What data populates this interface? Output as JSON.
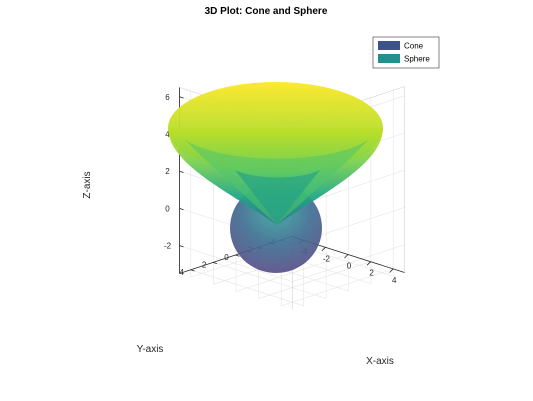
{
  "chart_data": {
    "type": "3d-surface",
    "title": "3D Plot: Cone and Sphere",
    "xlabel": "X-axis",
    "ylabel": "Y-axis",
    "zlabel": "Z-axis",
    "xlim": [
      -5,
      5
    ],
    "ylim": [
      -5,
      5
    ],
    "zlim": [
      -3.5,
      6.5
    ],
    "xticks": [
      -4,
      -2,
      0,
      2,
      4
    ],
    "yticks": [
      -4,
      -2,
      0,
      2,
      4
    ],
    "zticks": [
      -2,
      0,
      2,
      4,
      6
    ],
    "grid": true,
    "legend_position": "top-right",
    "colormap": "viridis",
    "series": [
      {
        "name": "Cone",
        "shape": "cone",
        "apex_z": 0,
        "top_z": 5,
        "top_radius": 5,
        "color": "#3b528b"
      },
      {
        "name": "Sphere",
        "shape": "sphere",
        "center": [
          0,
          0,
          -1
        ],
        "radius": 2.2,
        "color": "#21918c"
      }
    ]
  }
}
